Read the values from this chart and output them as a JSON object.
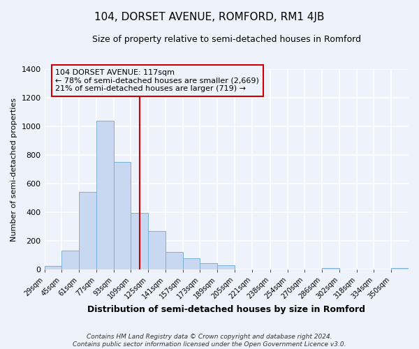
{
  "title": "104, DORSET AVENUE, ROMFORD, RM1 4JB",
  "subtitle": "Size of property relative to semi-detached houses in Romford",
  "xlabel": "Distribution of semi-detached houses by size in Romford",
  "ylabel": "Number of semi-detached properties",
  "bar_color": "#c8d8f0",
  "bar_edge_color": "#7ab0d8",
  "bin_labels": [
    "29sqm",
    "45sqm",
    "61sqm",
    "77sqm",
    "93sqm",
    "109sqm",
    "125sqm",
    "141sqm",
    "157sqm",
    "173sqm",
    "189sqm",
    "205sqm",
    "221sqm",
    "238sqm",
    "254sqm",
    "270sqm",
    "286sqm",
    "302sqm",
    "318sqm",
    "334sqm",
    "350sqm"
  ],
  "bar_values": [
    25,
    130,
    540,
    1040,
    750,
    395,
    270,
    120,
    80,
    45,
    30,
    0,
    0,
    0,
    0,
    0,
    10,
    0,
    0,
    0,
    10
  ],
  "ylim": [
    0,
    1400
  ],
  "yticks": [
    0,
    200,
    400,
    600,
    800,
    1000,
    1200,
    1400
  ],
  "vline_x": 117,
  "bin_edges_sqm": [
    29,
    45,
    61,
    77,
    93,
    109,
    125,
    141,
    157,
    173,
    189,
    205,
    221,
    238,
    254,
    270,
    286,
    302,
    318,
    334,
    350
  ],
  "annotation_title": "104 DORSET AVENUE: 117sqm",
  "annotation_line1": "← 78% of semi-detached houses are smaller (2,669)",
  "annotation_line2": "21% of semi-detached houses are larger (719) →",
  "footer1": "Contains HM Land Registry data © Crown copyright and database right 2024.",
  "footer2": "Contains public sector information licensed under the Open Government Licence v3.0.",
  "background_color": "#eef2fb",
  "grid_color": "#ffffff",
  "vline_color": "#cc0000",
  "box_edge_color": "#cc0000",
  "title_fontsize": 11,
  "subtitle_fontsize": 9
}
